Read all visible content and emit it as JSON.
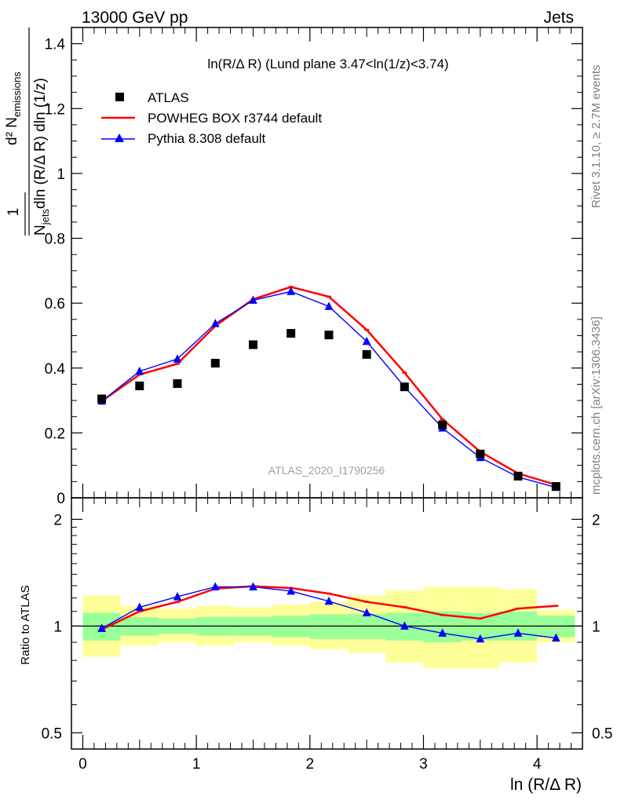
{
  "header": {
    "left": "13000 GeV pp",
    "right": "Jets"
  },
  "side_text": {
    "rivet": "Rivet 3.1.10, ≥ 2.7M events",
    "mcplots": "mcplots.cern.ch [arXiv:1306.3436]"
  },
  "analysis_label": "ATLAS_2020_I1790256",
  "plot_title": "ln(R/Δ R) (Lund plane 3.47<ln(1/z)<3.74)",
  "ylabel_top": {
    "numerator": "d² N",
    "numerator_sub": "emissions",
    "denominator": "N",
    "denominator_sub": "jets",
    "denominator_rest": "dln (R/Δ R) dln (1/z)",
    "one": "1"
  },
  "ylabel_bottom": "Ratio to ATLAS",
  "xlabel": "ln (R/Δ R)",
  "colors": {
    "atlas": "#000000",
    "powheg": "#ff0000",
    "pythia": "#0000ff",
    "band_inner": "#99ff99",
    "band_outer": "#ffff99"
  },
  "chart_data": [
    {
      "type": "scatter",
      "panel": "main",
      "title": "ln(R/Δ R) (Lund plane 3.47<ln(1/z)<3.74)",
      "xlabel": "ln (R/Δ R)",
      "ylim": [
        0,
        1.45
      ],
      "xlim": [
        -0.1,
        4.4
      ],
      "x": [
        0.167,
        0.5,
        0.833,
        1.167,
        1.5,
        1.833,
        2.167,
        2.5,
        2.833,
        3.167,
        3.5,
        3.833,
        4.167
      ],
      "yticks": [
        0,
        0.2,
        0.4,
        0.6,
        0.8,
        1,
        1.2,
        1.4
      ],
      "ytick_labels": [
        "0",
        "0.2",
        "0.4",
        "0.6",
        "0.8",
        "1",
        "1.2",
        "1.4"
      ],
      "series": [
        {
          "name": "ATLAS",
          "style": "markers",
          "values": [
            0.305,
            0.345,
            0.352,
            0.415,
            0.472,
            0.507,
            0.502,
            0.442,
            0.342,
            0.225,
            0.135,
            0.067,
            0.035
          ]
        },
        {
          "name": "POWHEG BOX r3744 default",
          "style": "line",
          "values": [
            0.298,
            0.38,
            0.413,
            0.53,
            0.612,
            0.65,
            0.62,
            0.518,
            0.386,
            0.242,
            0.142,
            0.075,
            0.04
          ]
        },
        {
          "name": "Pythia 8.308 default",
          "style": "line-triangles",
          "values": [
            0.298,
            0.39,
            0.428,
            0.537,
            0.609,
            0.636,
            0.59,
            0.482,
            0.342,
            0.215,
            0.124,
            0.064,
            0.032
          ]
        }
      ]
    },
    {
      "type": "line",
      "panel": "ratio",
      "ylabel": "Ratio to ATLAS",
      "xlabel": "ln (R/Δ R)",
      "scale": "log",
      "ylim": [
        0.45,
        2.3
      ],
      "xlim": [
        -0.1,
        4.4
      ],
      "x": [
        0.167,
        0.5,
        0.833,
        1.167,
        1.5,
        1.833,
        2.167,
        2.5,
        2.833,
        3.167,
        3.5,
        3.833,
        4.167
      ],
      "yticks": [
        0.5,
        1,
        2
      ],
      "ytick_labels": [
        "0.5",
        "1",
        "2"
      ],
      "xticks": [
        0,
        1,
        2,
        3,
        4
      ],
      "xtick_labels": [
        "0",
        "1",
        "2",
        "3",
        "4"
      ],
      "band_edges": [
        0,
        0.333,
        0.667,
        1.0,
        1.333,
        1.667,
        2.0,
        2.333,
        2.667,
        3.0,
        3.333,
        3.667,
        4.0,
        4.333
      ],
      "band_inner": {
        "lo": [
          0.91,
          0.94,
          0.95,
          0.94,
          0.94,
          0.93,
          0.92,
          0.92,
          0.91,
          0.9,
          0.91,
          0.91,
          0.93
        ],
        "hi": [
          1.09,
          1.06,
          1.05,
          1.06,
          1.06,
          1.07,
          1.08,
          1.08,
          1.09,
          1.1,
          1.09,
          1.1,
          1.07
        ]
      },
      "band_outer": {
        "lo": [
          0.82,
          0.88,
          0.9,
          0.88,
          0.9,
          0.88,
          0.86,
          0.84,
          0.79,
          0.76,
          0.76,
          0.79,
          0.9
        ],
        "hi": [
          1.22,
          1.14,
          1.12,
          1.14,
          1.13,
          1.15,
          1.17,
          1.22,
          1.26,
          1.29,
          1.29,
          1.27,
          1.11
        ]
      },
      "series": [
        {
          "name": "POWHEG BOX r3744 default",
          "values": [
            0.978,
            1.1,
            1.17,
            1.275,
            1.295,
            1.28,
            1.235,
            1.17,
            1.13,
            1.075,
            1.05,
            1.12,
            1.14
          ]
        },
        {
          "name": "Pythia 8.308 default",
          "values": [
            0.985,
            1.13,
            1.21,
            1.29,
            1.29,
            1.255,
            1.175,
            1.09,
            1.0,
            0.955,
            0.92,
            0.955,
            0.925
          ]
        }
      ]
    }
  ]
}
